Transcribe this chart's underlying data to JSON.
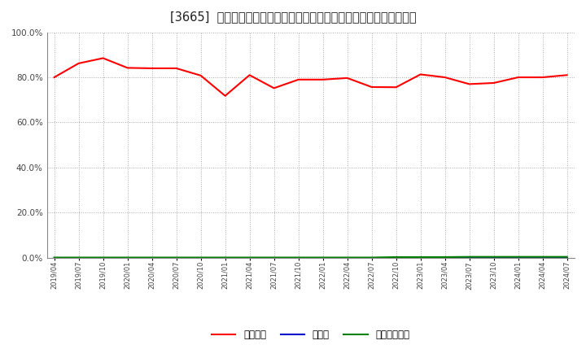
{
  "title": "[3665]  自己資本、のれん、繰延税金資産の総資産に対する比率の推移",
  "x_labels": [
    "2019/04",
    "2019/07",
    "2019/10",
    "2020/01",
    "2020/04",
    "2020/07",
    "2020/10",
    "2021/01",
    "2021/04",
    "2021/07",
    "2021/10",
    "2022/01",
    "2022/04",
    "2022/07",
    "2022/10",
    "2023/01",
    "2023/04",
    "2023/07",
    "2023/10",
    "2024/01",
    "2024/04",
    "2024/07"
  ],
  "equity_ratio": [
    0.8,
    0.862,
    0.885,
    0.842,
    0.84,
    0.84,
    0.808,
    0.718,
    0.81,
    0.752,
    0.79,
    0.79,
    0.797,
    0.757,
    0.756,
    0.813,
    0.8,
    0.77,
    0.775,
    0.8,
    0.8,
    0.81
  ],
  "goodwill_ratio": [
    0.0,
    0.0,
    0.0,
    0.0,
    0.0,
    0.0,
    0.0,
    0.0,
    0.0,
    0.0,
    0.0,
    0.0,
    0.0,
    0.0,
    0.0,
    0.0,
    0.0,
    0.0,
    0.0,
    0.0,
    0.0,
    0.0
  ],
  "deferred_tax_ratio": [
    0.001,
    0.001,
    0.001,
    0.001,
    0.001,
    0.001,
    0.001,
    0.001,
    0.001,
    0.001,
    0.001,
    0.001,
    0.001,
    0.001,
    0.003,
    0.003,
    0.003,
    0.004,
    0.004,
    0.004,
    0.004,
    0.004
  ],
  "equity_color": "#ff0000",
  "goodwill_color": "#0000cc",
  "deferred_tax_color": "#008000",
  "legend_labels": [
    "自己資本",
    "のれん",
    "繰延税金資産"
  ],
  "ylim": [
    0.0,
    1.0
  ],
  "yticks": [
    0.0,
    0.2,
    0.4,
    0.6,
    0.8,
    1.0
  ],
  "bg_color": "#ffffff",
  "grid_color": "#aaaaaa",
  "plot_bg_color": "#ffffff",
  "title_fontsize": 10.5,
  "linewidth": 1.5
}
